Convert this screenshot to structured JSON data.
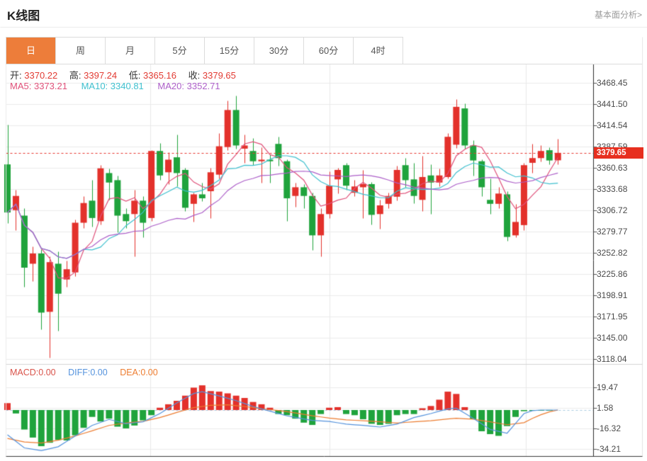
{
  "header": {
    "title": "K线图",
    "link": "基本面分析>"
  },
  "tabs": [
    {
      "name": "tab-day",
      "label": "日",
      "active": true
    },
    {
      "name": "tab-week",
      "label": "周",
      "active": false
    },
    {
      "name": "tab-month",
      "label": "月",
      "active": false
    },
    {
      "name": "tab-5min",
      "label": "5分",
      "active": false
    },
    {
      "name": "tab-15min",
      "label": "15分",
      "active": false
    },
    {
      "name": "tab-30min",
      "label": "30分",
      "active": false
    },
    {
      "name": "tab-60min",
      "label": "60分",
      "active": false
    },
    {
      "name": "tab-4hour",
      "label": "4时",
      "active": false
    }
  ],
  "ohlc": {
    "open_label": "开:",
    "open_value": "3370.22",
    "high_label": "高:",
    "high_value": "3397.24",
    "low_label": "低:",
    "low_value": "3365.16",
    "close_label": "收:",
    "close_value": "3379.65"
  },
  "ma_legend": {
    "ma5_label": "MA5:",
    "ma5_value": "3373.21",
    "ma10_label": "MA10:",
    "ma10_value": "3340.81",
    "ma20_label": "MA20:",
    "ma20_value": "3352.71"
  },
  "macd_legend": {
    "macd_label": "MACD:",
    "macd_value": "0.00",
    "diff_label": "DIFF:",
    "diff_value": "0.00",
    "dea_label": "DEA:",
    "dea_value": "0.00"
  },
  "price_tag": "3379.65",
  "colors": {
    "up": "#e3312b",
    "down": "#1fa33c",
    "ma5": "#e0517a",
    "ma10": "#3fc0cf",
    "ma20": "#ad5fc9",
    "diff": "#5593dd",
    "dea": "#ed7d31",
    "macd_label": "#d9534a",
    "up_value_text": "#e23b33",
    "tab_accent": "#ed7d3a",
    "tag_bg": "#e72f1f",
    "grid": "#ececec",
    "axis": "#2e2e2e",
    "baseline_dash": "#a9cbe2",
    "price_line": "#e8342c"
  },
  "chart_data": {
    "type": "candlestick",
    "title": "K线图",
    "y_ticks": [
      3468.45,
      3441.5,
      3414.54,
      3387.59,
      3360.63,
      3333.68,
      3306.72,
      3279.77,
      3252.82,
      3225.86,
      3198.91,
      3171.95,
      3145.0,
      3118.04
    ],
    "ylim": [
      3118.04,
      3468.45
    ],
    "current_price": 3379.65,
    "grid": true,
    "legend_position": "top-left",
    "ma_periods": [
      5,
      10,
      20
    ],
    "candles_ohlc": [
      [
        3365,
        3415,
        3291,
        3304
      ],
      [
        3307,
        3333,
        3282,
        3325
      ],
      [
        3300,
        3309,
        3210,
        3234
      ],
      [
        3239,
        3261,
        3217,
        3252
      ],
      [
        3252,
        3257,
        3156,
        3177
      ],
      [
        3178,
        3248,
        3120,
        3241
      ],
      [
        3239,
        3255,
        3154,
        3201
      ],
      [
        3219,
        3243,
        3210,
        3232
      ],
      [
        3228,
        3295,
        3223,
        3291
      ],
      [
        3291,
        3325,
        3284,
        3316
      ],
      [
        3319,
        3345,
        3286,
        3297
      ],
      [
        3293,
        3364,
        3289,
        3360
      ],
      [
        3354,
        3360,
        3320,
        3342
      ],
      [
        3345,
        3351,
        3279,
        3300
      ],
      [
        3302,
        3309,
        3284,
        3293
      ],
      [
        3302,
        3333,
        3248,
        3319
      ],
      [
        3319,
        3325,
        3273,
        3291
      ],
      [
        3297,
        3383,
        3293,
        3382
      ],
      [
        3382,
        3392,
        3345,
        3351
      ],
      [
        3355,
        3380,
        3340,
        3371
      ],
      [
        3374,
        3403,
        3337,
        3354
      ],
      [
        3358,
        3361,
        3306,
        3310
      ],
      [
        3315,
        3329,
        3292,
        3327
      ],
      [
        3327,
        3342,
        3318,
        3322
      ],
      [
        3331,
        3361,
        3297,
        3355
      ],
      [
        3352,
        3405,
        3347,
        3388
      ],
      [
        3387,
        3446,
        3383,
        3434
      ],
      [
        3434,
        3452,
        3385,
        3389
      ],
      [
        3385,
        3403,
        3367,
        3389
      ],
      [
        3382,
        3398,
        3364,
        3369
      ],
      [
        3369,
        3387,
        3342,
        3371
      ],
      [
        3371,
        3378,
        3342,
        3369
      ],
      [
        3391,
        3400,
        3363,
        3373
      ],
      [
        3369,
        3371,
        3293,
        3322
      ],
      [
        3325,
        3342,
        3311,
        3336
      ],
      [
        3336,
        3340,
        3309,
        3325
      ],
      [
        3325,
        3329,
        3256,
        3275
      ],
      [
        3275,
        3309,
        3248,
        3302
      ],
      [
        3302,
        3356,
        3297,
        3338
      ],
      [
        3346,
        3361,
        3328,
        3358
      ],
      [
        3364,
        3367,
        3333,
        3338
      ],
      [
        3329,
        3345,
        3325,
        3337
      ],
      [
        3336,
        3358,
        3297,
        3340
      ],
      [
        3340,
        3343,
        3289,
        3301
      ],
      [
        3302,
        3320,
        3283,
        3313
      ],
      [
        3315,
        3329,
        3309,
        3325
      ],
      [
        3324,
        3363,
        3319,
        3358
      ],
      [
        3364,
        3373,
        3336,
        3345
      ],
      [
        3346,
        3367,
        3316,
        3325
      ],
      [
        3320,
        3376,
        3306,
        3349
      ],
      [
        3351,
        3365,
        3302,
        3342
      ],
      [
        3342,
        3360,
        3337,
        3351
      ],
      [
        3349,
        3405,
        3347,
        3400
      ],
      [
        3390,
        3448,
        3386,
        3438
      ],
      [
        3436,
        3442,
        3385,
        3389
      ],
      [
        3389,
        3396,
        3351,
        3370
      ],
      [
        3369,
        3371,
        3325,
        3336
      ],
      [
        3320,
        3347,
        3302,
        3315
      ],
      [
        3315,
        3336,
        3309,
        3328
      ],
      [
        3327,
        3331,
        3268,
        3273
      ],
      [
        3275,
        3315,
        3273,
        3292
      ],
      [
        3288,
        3367,
        3282,
        3364
      ],
      [
        3367,
        3391,
        3354,
        3373
      ],
      [
        3373,
        3389,
        3369,
        3382
      ],
      [
        3383,
        3387,
        3365,
        3370
      ],
      [
        3370.22,
        3397.24,
        3365.16,
        3379.65
      ]
    ],
    "macd_panel": {
      "y_ticks": [
        19.47,
        1.58,
        -16.32,
        -34.21
      ],
      "histogram": [
        6,
        -3,
        -17,
        -24,
        -31.5,
        -28.5,
        -26,
        -26.5,
        -22,
        -15.5,
        -6,
        -10,
        -7.5,
        -14.5,
        -16,
        -13.5,
        -9,
        -4.5,
        2,
        5,
        8,
        12.5,
        19.5,
        21.5,
        16.5,
        16,
        14.5,
        12.5,
        10.5,
        7,
        5,
        2,
        -3.5,
        -4.5,
        -7.5,
        -11,
        -13,
        -3.5,
        2,
        2.5,
        -3.5,
        -4.5,
        -8,
        -12,
        -13,
        -12,
        -4.5,
        -3.5,
        -3.5,
        1.5,
        3.5,
        9,
        16,
        14,
        2.5,
        -8,
        -18.5,
        -21,
        -22.5,
        -14,
        -6,
        -1,
        -0.5,
        -0.3,
        -0.2,
        0
      ],
      "diff_points": [
        [
          0,
          -21.6
        ],
        [
          2,
          -33
        ],
        [
          4,
          -35.4
        ],
        [
          6,
          -32
        ],
        [
          8,
          -22.6
        ],
        [
          10,
          -13.4
        ],
        [
          12,
          -8.2
        ],
        [
          14,
          -11.9
        ],
        [
          16,
          -10.3
        ],
        [
          18,
          -3.1
        ],
        [
          20,
          6.2
        ],
        [
          22,
          14.4
        ],
        [
          23,
          16
        ],
        [
          25,
          12.3
        ],
        [
          27,
          8.2
        ],
        [
          29,
          3.1
        ],
        [
          31,
          -1
        ],
        [
          33,
          -5.1
        ],
        [
          35,
          -7.8
        ],
        [
          36,
          -9
        ],
        [
          38,
          -9.9
        ],
        [
          40,
          -12.3
        ],
        [
          42,
          -13.4
        ],
        [
          44,
          -14.8
        ],
        [
          46,
          -12.3
        ],
        [
          48,
          -6.6
        ],
        [
          50,
          -3.1
        ],
        [
          52,
          1
        ],
        [
          53,
          1.6
        ],
        [
          55,
          -7.2
        ],
        [
          57,
          -16.9
        ],
        [
          59,
          -20.2
        ],
        [
          61,
          -3.1
        ],
        [
          62,
          -0.5
        ],
        [
          63,
          0
        ],
        [
          65,
          0
        ]
      ],
      "dea_points": [
        [
          0,
          -24.7
        ],
        [
          2,
          -27.8
        ],
        [
          4,
          -28.8
        ],
        [
          6,
          -26.3
        ],
        [
          8,
          -22.6
        ],
        [
          10,
          -18.1
        ],
        [
          12,
          -13.4
        ],
        [
          14,
          -11.3
        ],
        [
          16,
          -9.9
        ],
        [
          18,
          -6.6
        ],
        [
          20,
          -2.1
        ],
        [
          22,
          2.1
        ],
        [
          24,
          4.1
        ],
        [
          26,
          4.5
        ],
        [
          28,
          3.1
        ],
        [
          30,
          1
        ],
        [
          32,
          -0.4
        ],
        [
          34,
          -2.5
        ],
        [
          36,
          -5
        ],
        [
          38,
          -7
        ],
        [
          40,
          -8.6
        ],
        [
          42,
          -9.3
        ],
        [
          44,
          -10.3
        ],
        [
          46,
          -11.3
        ],
        [
          48,
          -10.3
        ],
        [
          50,
          -9.3
        ],
        [
          52,
          -7.8
        ],
        [
          53,
          -7.2
        ],
        [
          55,
          -8
        ],
        [
          57,
          -10.3
        ],
        [
          59,
          -12.8
        ],
        [
          61,
          -11
        ],
        [
          62,
          -7.2
        ],
        [
          63,
          -4.1
        ],
        [
          64,
          -1.6
        ],
        [
          65,
          0
        ]
      ]
    }
  }
}
